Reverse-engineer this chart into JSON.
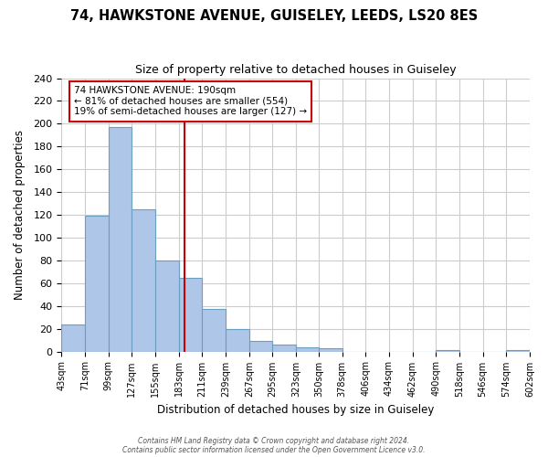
{
  "title": "74, HAWKSTONE AVENUE, GUISELEY, LEEDS, LS20 8ES",
  "subtitle": "Size of property relative to detached houses in Guiseley",
  "xlabel": "Distribution of detached houses by size in Guiseley",
  "ylabel": "Number of detached properties",
  "bar_edges": [
    43,
    71,
    99,
    127,
    155,
    183,
    211,
    239,
    267,
    295,
    323,
    350,
    378,
    406,
    434,
    462,
    490,
    518,
    546,
    574,
    602
  ],
  "bar_heights": [
    24,
    119,
    197,
    125,
    80,
    65,
    37,
    20,
    9,
    6,
    4,
    3,
    0,
    0,
    0,
    0,
    1,
    0,
    0,
    1
  ],
  "bar_color": "#AEC6E8",
  "bar_edge_color": "#6A9FC0",
  "ref_line_x": 190,
  "ref_line_color": "#CC0000",
  "annotation_box_edge_color": "#CC0000",
  "annotation_line1": "74 HAWKSTONE AVENUE: 190sqm",
  "annotation_line2": "← 81% of detached houses are smaller (554)",
  "annotation_line3": "19% of semi-detached houses are larger (127) →",
  "ylim": [
    0,
    240
  ],
  "yticks": [
    0,
    20,
    40,
    60,
    80,
    100,
    120,
    140,
    160,
    180,
    200,
    220,
    240
  ],
  "tick_labels": [
    "43sqm",
    "71sqm",
    "99sqm",
    "127sqm",
    "155sqm",
    "183sqm",
    "211sqm",
    "239sqm",
    "267sqm",
    "295sqm",
    "323sqm",
    "350sqm",
    "378sqm",
    "406sqm",
    "434sqm",
    "462sqm",
    "490sqm",
    "518sqm",
    "546sqm",
    "574sqm",
    "602sqm"
  ],
  "footer1": "Contains HM Land Registry data © Crown copyright and database right 2024.",
  "footer2": "Contains public sector information licensed under the Open Government Licence v3.0.",
  "background_color": "#FFFFFF",
  "grid_color": "#CCCCCC"
}
